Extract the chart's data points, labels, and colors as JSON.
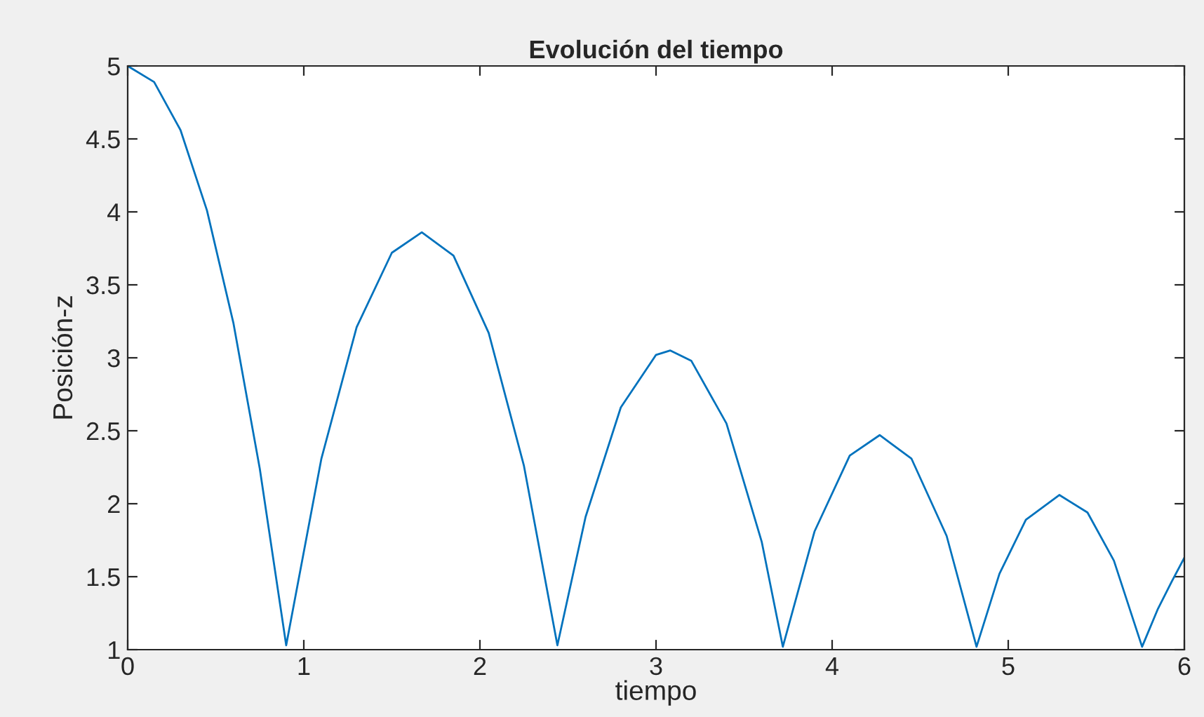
{
  "chart_data": {
    "type": "line",
    "title": "Evolución del tiempo",
    "xlabel": "tiempo",
    "ylabel": "Posición-z",
    "series": [
      {
        "color": "#0072bd",
        "x": [
          0,
          0.15,
          0.3,
          0.45,
          0.6,
          0.75,
          0.9,
          1.1,
          1.3,
          1.5,
          1.67,
          1.85,
          2.05,
          2.25,
          2.44,
          2.6,
          2.8,
          3.0,
          3.08,
          3.2,
          3.4,
          3.6,
          3.72,
          3.9,
          4.1,
          4.27,
          4.45,
          4.65,
          4.82,
          4.95,
          5.1,
          5.29,
          5.45,
          5.6,
          5.76,
          5.85,
          5.93,
          6.0
        ],
        "values": [
          5,
          4.89,
          4.56,
          4.01,
          3.24,
          2.24,
          1.03,
          2.31,
          3.21,
          3.72,
          3.86,
          3.7,
          3.17,
          2.26,
          1.03,
          1.91,
          2.66,
          3.02,
          3.05,
          2.98,
          2.55,
          1.74,
          1.02,
          1.81,
          2.33,
          2.47,
          2.31,
          1.78,
          1.02,
          1.52,
          1.89,
          2.06,
          1.94,
          1.61,
          1.02,
          1.28,
          1.47,
          1.63
        ]
      }
    ],
    "xlim": [
      0,
      6
    ],
    "ylim": [
      1,
      5
    ],
    "xticks": [
      0,
      1,
      2,
      3,
      4,
      5,
      6
    ],
    "yticks": [
      1,
      1.5,
      2,
      2.5,
      3,
      3.5,
      4,
      4.5,
      5
    ],
    "grid": false,
    "legend": false
  }
}
